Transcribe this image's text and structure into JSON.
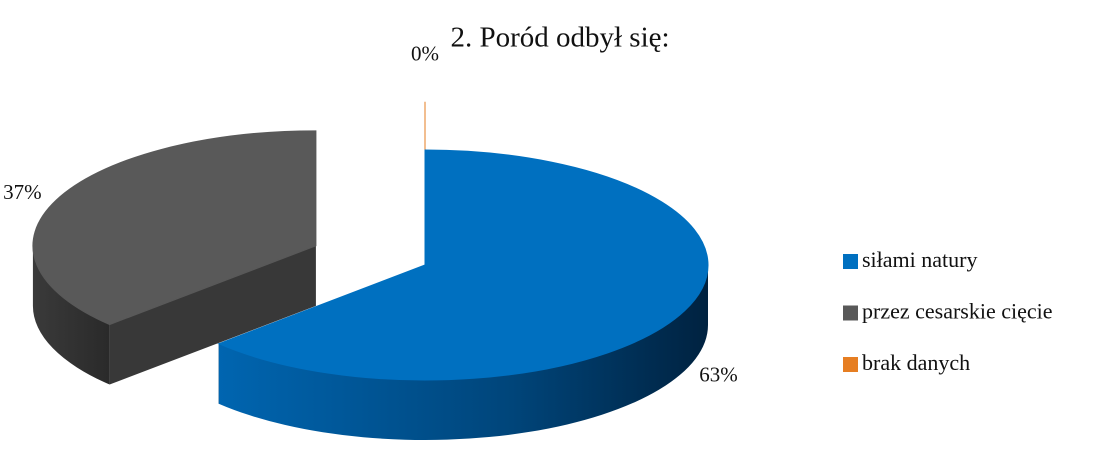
{
  "chart_data": {
    "type": "pie3d",
    "title": "2. Poród odbył się:",
    "categories": [
      "siłami natury",
      "przez cesarskie cięcie",
      "brak danych"
    ],
    "values": [
      63,
      37,
      0
    ],
    "value_labels": [
      "63%",
      "37%",
      "0%"
    ],
    "colors": [
      "#0070c0",
      "#595959",
      "#e67e22"
    ],
    "legend": "right"
  }
}
